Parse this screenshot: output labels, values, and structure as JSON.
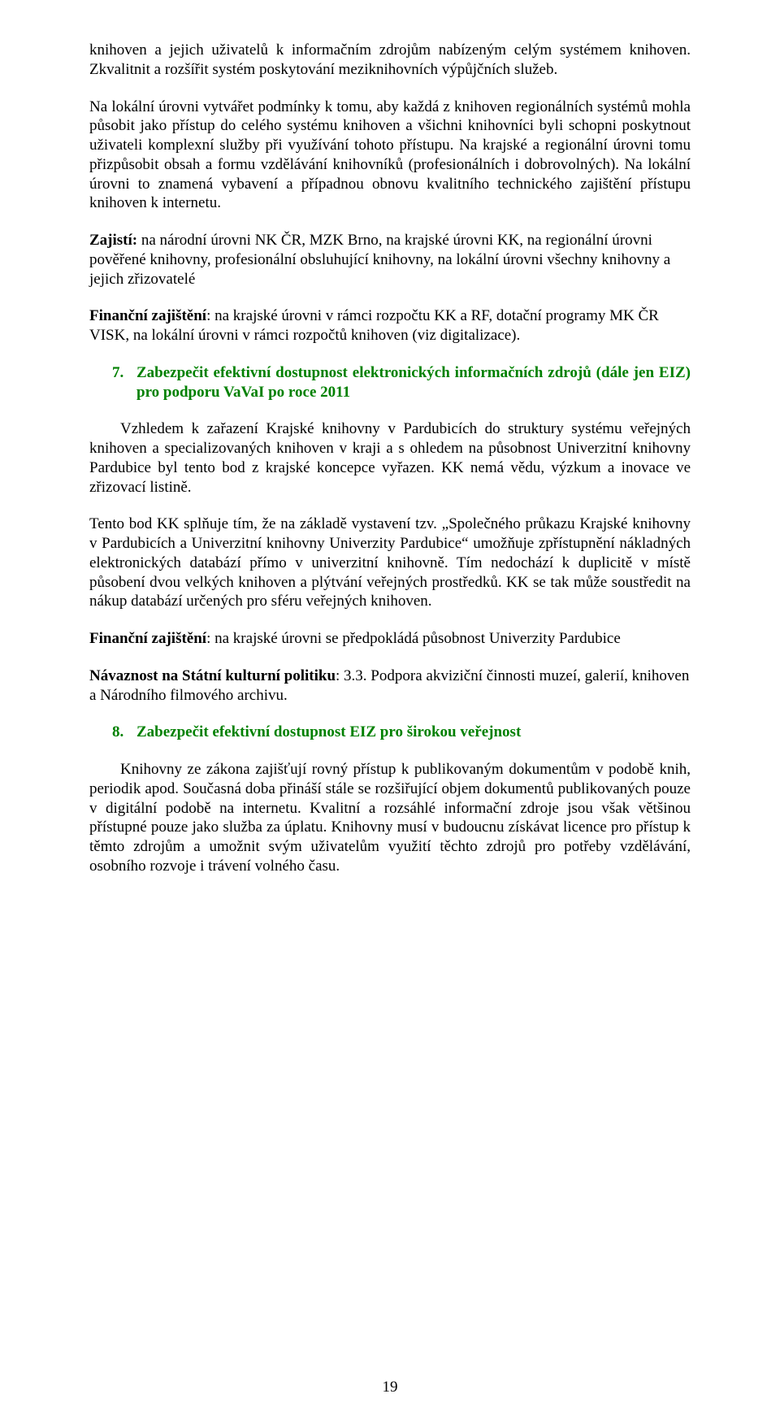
{
  "para1": "knihoven a jejich uživatelů k informačním zdrojům nabízeným celým systémem knihoven. Zkvalitnit a rozšířit systém poskytování meziknihovních výpůjčních služeb.",
  "para2": "Na lokální úrovni vytvářet podmínky k tomu, aby každá z knihoven regionálních systémů mohla působit jako přístup do celého systému knihoven  a všichni knihovníci byli schopni poskytnout uživateli komplexní služby při využívání tohoto přístupu. Na krajské a regionální úrovni tomu přizpůsobit obsah a formu vzdělávání knihovníků (profesionálních i dobrovolných). Na lokální úrovni to znamená vybavení a případnou obnovu kvalitního technického zajištění přístupu knihoven k internetu.",
  "para3a_bold": "Zajistí:",
  "para3a_rest": " na národní úrovni NK ČR, MZK Brno, na krajské úrovni KK, na regionální úrovni",
  "para3b": "pověřené knihovny, profesionální obsluhující knihovny, na lokální úrovni všechny knihovny a jejich zřizovatelé",
  "para4a_bold": "Finanční zajištění",
  "para4a_rest": ": na krajské úrovni v rámci rozpočtu KK a RF, dotační programy MK ČR",
  "para4b": "VISK, na lokální úrovni v rámci rozpočtů knihoven (viz digitalizace).",
  "heading7_num": "7.",
  "heading7_txt": "Zabezpečit efektivní dostupnost elektronických informačních  zdrojů (dále jen EIZ) pro podporu VaVaI po roce 2011",
  "para5": "Vzhledem k zařazení Krajské knihovny v Pardubicích do  struktury systému veřejných knihoven a specializovaných knihoven v kraji a s ohledem na působnost Univerzitní knihovny Pardubice byl tento bod z krajské koncepce vyřazen. KK nemá vědu, výzkum a inovace ve zřizovací listině.",
  "para6": "Tento bod KK splňuje tím, že na základě vystavení tzv. „Společného průkazu Krajské knihovny v Pardubicích a Univerzitní knihovny Univerzity Pardubice“ umožňuje zpřístupnění nákladných elektronických databází  přímo v univerzitní knihovně.  Tím nedochází k duplicitě v místě působení  dvou velkých knihoven a plýtvání veřejných prostředků. KK se tak může soustředit na nákup databází určených pro sféru veřejných knihoven.",
  "para7_bold": "Finanční zajištění",
  "para7_rest": ": na krajské úrovni se předpokládá působnost  Univerzity Pardubice",
  "para8_bold": "Návaznost na Státní kulturní politiku",
  "para8_rest": ": 3.3. Podpora akviziční činnosti muzeí, galerií,   knihoven  a Národního filmového archivu.",
  "heading8_num": "8.",
  "heading8_txt": "Zabezpečit efektivní dostupnost EIZ pro širokou veřejnost",
  "para9": "Knihovny ze zákona zajišťují rovný přístup k publikovaným dokumentům v podobě knih, periodik apod. Současná doba přináší stále se rozšiřující objem dokumentů publikovaných pouze v digitální podobě na internetu. Kvalitní a rozsáhlé informační zdroje jsou však většinou  přístupné pouze jako služba za úplatu. Knihovny musí v budoucnu získávat licence pro přístup k těmto zdrojům a umožnit svým uživatelům využití těchto zdrojů pro potřeby vzdělávání, osobního rozvoje i trávení volného času.",
  "page_number": "19"
}
